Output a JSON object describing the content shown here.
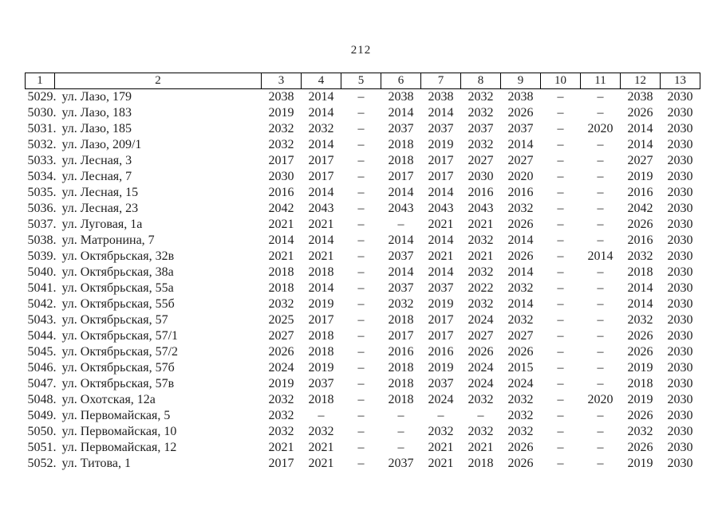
{
  "page": {
    "number": "212"
  },
  "colors": {
    "background": "#ffffff",
    "text": "#1f1f1f",
    "border": "#000000"
  },
  "table": {
    "headers": [
      "1",
      "2",
      "3",
      "4",
      "5",
      "6",
      "7",
      "8",
      "9",
      "10",
      "11",
      "12",
      "13"
    ],
    "rows": [
      {
        "num": "5029.",
        "address": "ул. Лазо, 179",
        "values": [
          "2038",
          "2014",
          "–",
          "2038",
          "2038",
          "2032",
          "2038",
          "–",
          "–",
          "2038",
          "2030"
        ]
      },
      {
        "num": "5030.",
        "address": "ул. Лазо, 183",
        "values": [
          "2019",
          "2014",
          "–",
          "2014",
          "2014",
          "2032",
          "2026",
          "–",
          "–",
          "2026",
          "2030"
        ]
      },
      {
        "num": "5031.",
        "address": "ул. Лазо, 185",
        "values": [
          "2032",
          "2032",
          "–",
          "2037",
          "2037",
          "2037",
          "2037",
          "–",
          "2020",
          "2014",
          "2030"
        ]
      },
      {
        "num": "5032.",
        "address": "ул. Лазо, 209/1",
        "values": [
          "2032",
          "2014",
          "–",
          "2018",
          "2019",
          "2032",
          "2014",
          "–",
          "–",
          "2014",
          "2030"
        ]
      },
      {
        "num": "5033.",
        "address": "ул. Лесная, 3",
        "values": [
          "2017",
          "2017",
          "–",
          "2018",
          "2017",
          "2027",
          "2027",
          "–",
          "–",
          "2027",
          "2030"
        ]
      },
      {
        "num": "5034.",
        "address": "ул. Лесная, 7",
        "values": [
          "2030",
          "2017",
          "–",
          "2017",
          "2017",
          "2030",
          "2020",
          "–",
          "–",
          "2019",
          "2030"
        ]
      },
      {
        "num": "5035.",
        "address": "ул. Лесная, 15",
        "values": [
          "2016",
          "2014",
          "–",
          "2014",
          "2014",
          "2016",
          "2016",
          "–",
          "–",
          "2016",
          "2030"
        ]
      },
      {
        "num": "5036.",
        "address": "ул. Лесная, 23",
        "values": [
          "2042",
          "2043",
          "–",
          "2043",
          "2043",
          "2043",
          "2032",
          "–",
          "–",
          "2042",
          "2030"
        ]
      },
      {
        "num": "5037.",
        "address": "ул. Луговая, 1а",
        "values": [
          "2021",
          "2021",
          "–",
          "–",
          "2021",
          "2021",
          "2026",
          "–",
          "–",
          "2026",
          "2030"
        ]
      },
      {
        "num": "5038.",
        "address": "ул. Матронина, 7",
        "values": [
          "2014",
          "2014",
          "–",
          "2014",
          "2014",
          "2032",
          "2014",
          "–",
          "–",
          "2016",
          "2030"
        ]
      },
      {
        "num": "5039.",
        "address": "ул. Октябрьская, 32в",
        "values": [
          "2021",
          "2021",
          "–",
          "2037",
          "2021",
          "2021",
          "2026",
          "–",
          "2014",
          "2032",
          "2030"
        ]
      },
      {
        "num": "5040.",
        "address": "ул. Октябрьская, 38а",
        "values": [
          "2018",
          "2018",
          "–",
          "2014",
          "2014",
          "2032",
          "2014",
          "–",
          "–",
          "2018",
          "2030"
        ]
      },
      {
        "num": "5041.",
        "address": "ул. Октябрьская, 55а",
        "values": [
          "2018",
          "2014",
          "–",
          "2037",
          "2037",
          "2022",
          "2032",
          "–",
          "–",
          "2014",
          "2030"
        ]
      },
      {
        "num": "5042.",
        "address": "ул. Октябрьская, 55б",
        "values": [
          "2032",
          "2019",
          "–",
          "2032",
          "2019",
          "2032",
          "2014",
          "–",
          "–",
          "2014",
          "2030"
        ]
      },
      {
        "num": "5043.",
        "address": "ул. Октябрьская, 57",
        "values": [
          "2025",
          "2017",
          "–",
          "2018",
          "2017",
          "2024",
          "2032",
          "–",
          "–",
          "2032",
          "2030"
        ]
      },
      {
        "num": "5044.",
        "address": "ул. Октябрьская, 57/1",
        "values": [
          "2027",
          "2018",
          "–",
          "2017",
          "2017",
          "2027",
          "2027",
          "–",
          "–",
          "2026",
          "2030"
        ]
      },
      {
        "num": "5045.",
        "address": "ул. Октябрьская, 57/2",
        "values": [
          "2026",
          "2018",
          "–",
          "2016",
          "2016",
          "2026",
          "2026",
          "–",
          "–",
          "2026",
          "2030"
        ]
      },
      {
        "num": "5046.",
        "address": "ул. Октябрьская, 57б",
        "values": [
          "2024",
          "2019",
          "–",
          "2018",
          "2019",
          "2024",
          "2015",
          "–",
          "–",
          "2019",
          "2030"
        ]
      },
      {
        "num": "5047.",
        "address": "ул. Октябрьская, 57в",
        "values": [
          "2019",
          "2037",
          "–",
          "2018",
          "2037",
          "2024",
          "2024",
          "–",
          "–",
          "2018",
          "2030"
        ]
      },
      {
        "num": "5048.",
        "address": "ул. Охотская, 12а",
        "values": [
          "2032",
          "2018",
          "–",
          "2018",
          "2024",
          "2032",
          "2032",
          "–",
          "2020",
          "2019",
          "2030"
        ]
      },
      {
        "num": "5049.",
        "address": "ул. Первомайская, 5",
        "values": [
          "2032",
          "–",
          "–",
          "–",
          "–",
          "–",
          "2032",
          "–",
          "–",
          "2026",
          "2030"
        ]
      },
      {
        "num": "5050.",
        "address": "ул. Первомайская, 10",
        "values": [
          "2032",
          "2032",
          "–",
          "–",
          "2032",
          "2032",
          "2032",
          "–",
          "–",
          "2032",
          "2030"
        ]
      },
      {
        "num": "5051.",
        "address": "ул. Первомайская, 12",
        "values": [
          "2021",
          "2021",
          "–",
          "–",
          "2021",
          "2021",
          "2026",
          "–",
          "–",
          "2026",
          "2030"
        ]
      },
      {
        "num": "5052.",
        "address": "ул. Титова, 1",
        "values": [
          "2017",
          "2021",
          "–",
          "2037",
          "2021",
          "2018",
          "2026",
          "–",
          "–",
          "2019",
          "2030"
        ]
      }
    ]
  }
}
